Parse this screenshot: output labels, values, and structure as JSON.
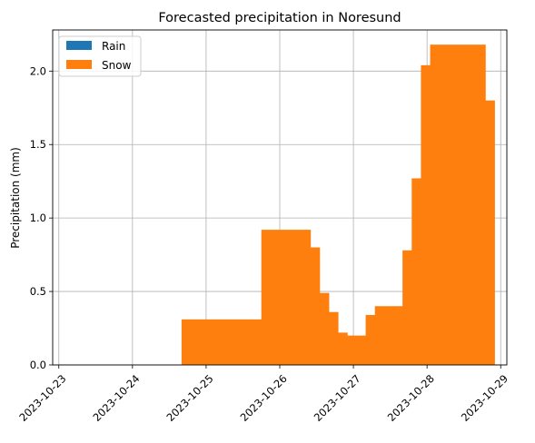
{
  "chart_data": {
    "type": "bar",
    "title": "Forecasted precipitation in Noresund",
    "xlabel": "",
    "ylabel": "Precipitation (mm)",
    "xlim": [
      "2023-10-22T22:00",
      "2023-10-29T02:00"
    ],
    "ylim": [
      0,
      2.28
    ],
    "x_ticks": [
      "2023-10-23",
      "2023-10-24",
      "2023-10-25",
      "2023-10-26",
      "2023-10-27",
      "2023-10-28",
      "2023-10-29"
    ],
    "y_ticks": [
      0.0,
      0.5,
      1.0,
      1.5,
      2.0
    ],
    "y_tick_labels": [
      "0.0",
      "0.5",
      "1.0",
      "1.5",
      "2.0"
    ],
    "grid": true,
    "legend_position": "top-left",
    "series": [
      {
        "name": "Rain",
        "color": "#1f77b4",
        "bars": []
      },
      {
        "name": "Snow",
        "color": "#ff7f0e",
        "bars": [
          {
            "start": "2023-10-24T16:00",
            "end": "2023-10-25T18:00",
            "value": 0.31
          },
          {
            "start": "2023-10-25T18:00",
            "end": "2023-10-26T10:00",
            "value": 0.92
          },
          {
            "start": "2023-10-26T10:00",
            "end": "2023-10-26T13:00",
            "value": 0.8
          },
          {
            "start": "2023-10-26T13:00",
            "end": "2023-10-26T16:00",
            "value": 0.49
          },
          {
            "start": "2023-10-26T16:00",
            "end": "2023-10-26T19:00",
            "value": 0.36
          },
          {
            "start": "2023-10-26T19:00",
            "end": "2023-10-26T22:00",
            "value": 0.22
          },
          {
            "start": "2023-10-26T22:00",
            "end": "2023-10-27T04:00",
            "value": 0.2
          },
          {
            "start": "2023-10-27T04:00",
            "end": "2023-10-27T07:00",
            "value": 0.34
          },
          {
            "start": "2023-10-27T07:00",
            "end": "2023-10-27T13:00",
            "value": 0.4
          },
          {
            "start": "2023-10-27T13:00",
            "end": "2023-10-27T16:00",
            "value": 0.4
          },
          {
            "start": "2023-10-27T16:00",
            "end": "2023-10-27T19:00",
            "value": 0.78
          },
          {
            "start": "2023-10-27T19:00",
            "end": "2023-10-27T22:00",
            "value": 1.27
          },
          {
            "start": "2023-10-27T22:00",
            "end": "2023-10-28T01:00",
            "value": 2.04
          },
          {
            "start": "2023-10-28T01:00",
            "end": "2023-10-28T16:00",
            "value": 2.18
          },
          {
            "start": "2023-10-28T16:00",
            "end": "2023-10-28T19:00",
            "value": 2.18
          },
          {
            "start": "2023-10-28T19:00",
            "end": "2023-10-28T22:00",
            "value": 1.8
          }
        ]
      }
    ]
  }
}
